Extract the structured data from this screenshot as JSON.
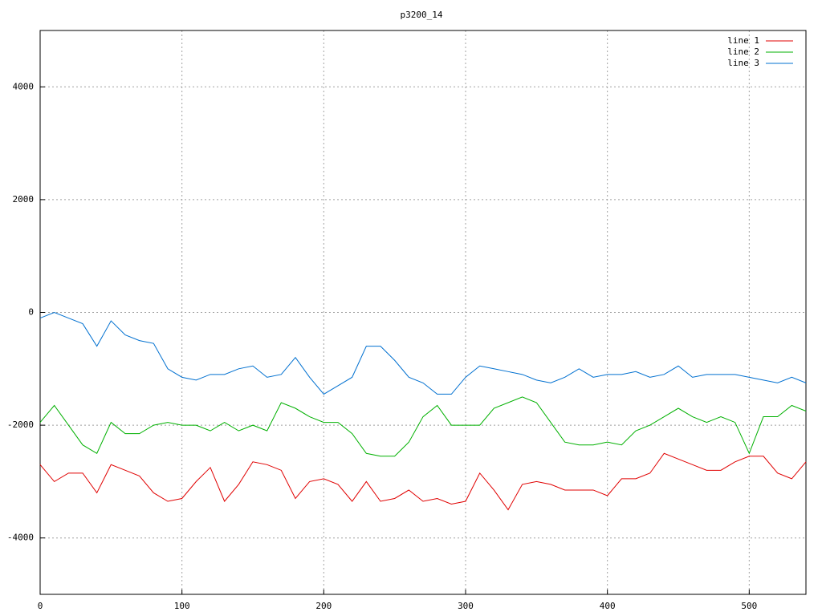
{
  "chart_data": {
    "type": "line",
    "title": "p3200_14",
    "x": [
      0,
      10,
      20,
      30,
      40,
      50,
      60,
      70,
      80,
      90,
      100,
      110,
      120,
      130,
      140,
      150,
      160,
      170,
      180,
      190,
      200,
      210,
      220,
      230,
      240,
      250,
      260,
      270,
      280,
      290,
      300,
      310,
      320,
      330,
      340,
      350,
      360,
      370,
      380,
      390,
      400,
      410,
      420,
      430,
      440,
      450,
      460,
      470,
      480,
      490,
      500,
      510,
      520,
      530,
      540
    ],
    "series": [
      {
        "name": "line 1",
        "color": "#e00000",
        "values": [
          -2700,
          -3000,
          -2850,
          -2850,
          -3200,
          -2700,
          -2800,
          -2900,
          -3200,
          -3350,
          -3300,
          -3000,
          -2750,
          -3350,
          -3050,
          -2650,
          -2700,
          -2800,
          -3300,
          -3000,
          -2950,
          -3050,
          -3350,
          -3000,
          -3350,
          -3300,
          -3150,
          -3350,
          -3300,
          -3400,
          -3350,
          -2850,
          -3150,
          -3500,
          -3050,
          -3000,
          -3050,
          -3150,
          -3150,
          -3150,
          -3250,
          -2950,
          -2950,
          -2850,
          -2500,
          -2600,
          -2700,
          -2800,
          -2800,
          -2650,
          -2550,
          -2550,
          -2850,
          -2950,
          -2650
        ]
      },
      {
        "name": "line 2",
        "color": "#00b000",
        "values": [
          -1950,
          -1650,
          -2000,
          -2350,
          -2500,
          -1950,
          -2150,
          -2150,
          -2000,
          -1950,
          -2000,
          -2000,
          -2100,
          -1950,
          -2100,
          -2000,
          -2100,
          -1600,
          -1700,
          -1850,
          -1950,
          -1950,
          -2150,
          -2500,
          -2550,
          -2550,
          -2300,
          -1850,
          -1650,
          -2000,
          -2000,
          -2000,
          -1700,
          -1600,
          -1500,
          -1600,
          -1950,
          -2300,
          -2350,
          -2350,
          -2300,
          -2350,
          -2100,
          -2000,
          -1850,
          -1700,
          -1850,
          -1950,
          -1850,
          -1950,
          -2500,
          -1850,
          -1850,
          -1650,
          -1750
        ]
      },
      {
        "name": "line 3",
        "color": "#0070d0",
        "values": [
          -100,
          0,
          -100,
          -200,
          -600,
          -150,
          -400,
          -500,
          -550,
          -1000,
          -1150,
          -1200,
          -1100,
          -1100,
          -1000,
          -950,
          -1150,
          -1100,
          -800,
          -1150,
          -1450,
          -1300,
          -1150,
          -600,
          -600,
          -850,
          -1150,
          -1250,
          -1450,
          -1450,
          -1150,
          -950,
          -1000,
          -1050,
          -1100,
          -1200,
          -1250,
          -1150,
          -1000,
          -1150,
          -1100,
          -1100,
          -1050,
          -1150,
          -1100,
          -950,
          -1150,
          -1100,
          -1100,
          -1100,
          -1150,
          -1200,
          -1250,
          -1150,
          -1250
        ]
      }
    ],
    "xlim": [
      0,
      540
    ],
    "ylim": [
      -5000,
      5000
    ],
    "xticks": [
      0,
      100,
      200,
      300,
      400,
      500
    ],
    "yticks": [
      -4000,
      -2000,
      0,
      2000,
      4000
    ],
    "grid": true,
    "legend": "top-right"
  }
}
